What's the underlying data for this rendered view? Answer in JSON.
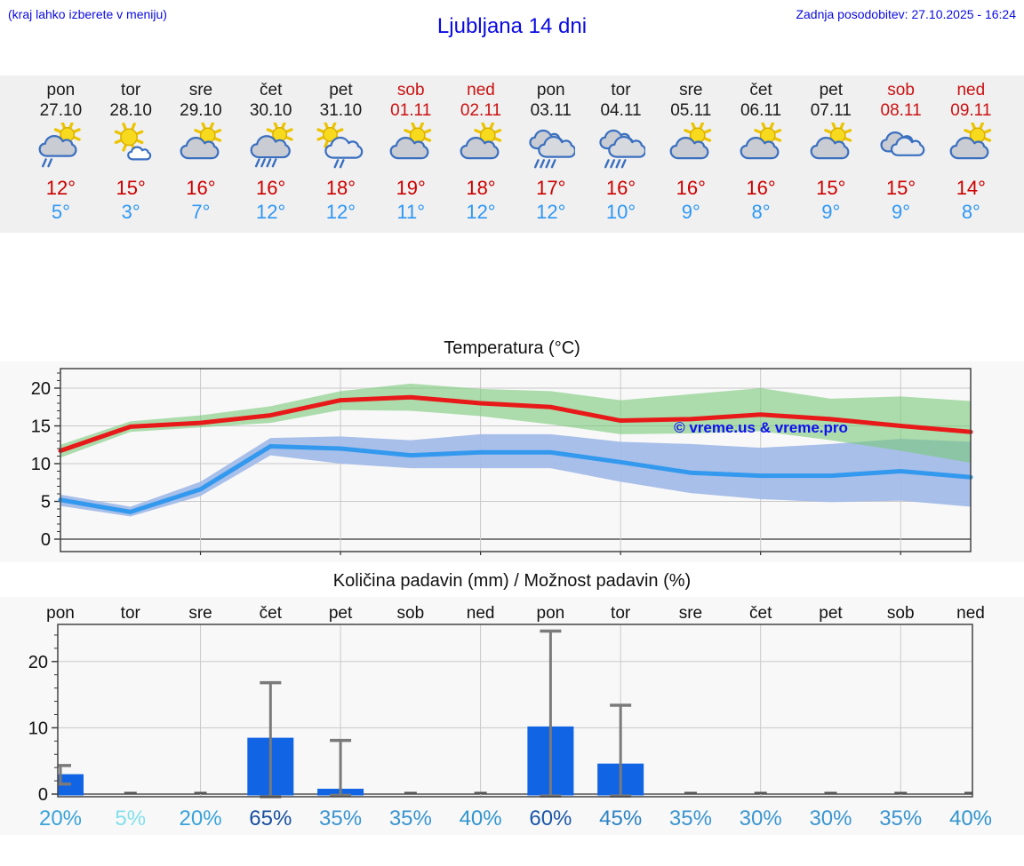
{
  "header": {
    "menu_hint": "(kraj lahko izberete v meniju)",
    "title": "Ljubljana 14 dni",
    "last_update": "Zadnja posodobitev: 27.10.2025 - 16:24"
  },
  "colors": {
    "link_blue": "#0a0ae0",
    "tmax_red": "#cc0000",
    "tmin_blue": "#2e97f5",
    "weekend_red": "#cc1111",
    "strip_bg": "#f0f0f0",
    "chart_bg": "#f8f8f8",
    "bar_blue": "#1164e4",
    "watermark_blue": "#1010ee"
  },
  "forecast": {
    "days": [
      {
        "day": "pon",
        "date": "27.10",
        "weekend": false,
        "icon": "sun-cloud-lightrain",
        "tmax": "12°",
        "tmin": "5°",
        "precip_prob": "20%",
        "prob_color": "#3aa2da"
      },
      {
        "day": "tor",
        "date": "28.10",
        "weekend": false,
        "icon": "sun-smallcloud",
        "tmax": "15°",
        "tmin": "3°",
        "precip_prob": "5%",
        "prob_color": "#82e0ea"
      },
      {
        "day": "sre",
        "date": "29.10",
        "weekend": false,
        "icon": "sun-cloud",
        "tmax": "16°",
        "tmin": "7°",
        "precip_prob": "20%",
        "prob_color": "#3aa2da"
      },
      {
        "day": "čet",
        "date": "30.10",
        "weekend": false,
        "icon": "sun-cloud-rain",
        "tmax": "16°",
        "tmin": "12°",
        "precip_prob": "65%",
        "prob_color": "#174f9e"
      },
      {
        "day": "pet",
        "date": "31.10",
        "weekend": false,
        "icon": "sun-left-cloud-lightrain",
        "tmax": "18°",
        "tmin": "12°",
        "precip_prob": "35%",
        "prob_color": "#3a94d0"
      },
      {
        "day": "sob",
        "date": "01.11",
        "weekend": true,
        "icon": "sun-cloud",
        "tmax": "19°",
        "tmin": "11°",
        "precip_prob": "35%",
        "prob_color": "#3a94d0"
      },
      {
        "day": "ned",
        "date": "02.11",
        "weekend": true,
        "icon": "sun-cloud",
        "tmax": "18°",
        "tmin": "12°",
        "precip_prob": "40%",
        "prob_color": "#3295ce"
      },
      {
        "day": "pon",
        "date": "03.11",
        "weekend": false,
        "icon": "clouds-rain",
        "tmax": "17°",
        "tmin": "12°",
        "precip_prob": "60%",
        "prob_color": "#1b57a8"
      },
      {
        "day": "tor",
        "date": "04.11",
        "weekend": false,
        "icon": "clouds-rain",
        "tmax": "16°",
        "tmin": "10°",
        "precip_prob": "45%",
        "prob_color": "#2d83c4"
      },
      {
        "day": "sre",
        "date": "05.11",
        "weekend": false,
        "icon": "sun-cloud",
        "tmax": "16°",
        "tmin": "9°",
        "precip_prob": "35%",
        "prob_color": "#3a94d0"
      },
      {
        "day": "čet",
        "date": "06.11",
        "weekend": false,
        "icon": "sun-cloud",
        "tmax": "16°",
        "tmin": "8°",
        "precip_prob": "30%",
        "prob_color": "#3b96d1"
      },
      {
        "day": "pet",
        "date": "07.11",
        "weekend": false,
        "icon": "sun-cloud",
        "tmax": "15°",
        "tmin": "9°",
        "precip_prob": "30%",
        "prob_color": "#3b96d1"
      },
      {
        "day": "sob",
        "date": "08.11",
        "weekend": true,
        "icon": "clouds",
        "tmax": "15°",
        "tmin": "9°",
        "precip_prob": "35%",
        "prob_color": "#3a94d0"
      },
      {
        "day": "ned",
        "date": "09.11",
        "weekend": true,
        "icon": "sun-cloud",
        "tmax": "14°",
        "tmin": "8°",
        "precip_prob": "40%",
        "prob_color": "#3295ce"
      }
    ]
  },
  "chart_data": [
    {
      "type": "line",
      "title": "Temperatura (°C)",
      "watermark": "© vreme.us & vreme.pro",
      "x_days": [
        "pon 27.10",
        "tor 28.10",
        "sre 29.10",
        "čet 30.10",
        "pet 31.10",
        "sob 01.11",
        "ned 02.11",
        "pon 03.11",
        "tor 04.11",
        "sre 05.11",
        "čet 06.11",
        "pet 07.11",
        "sob 08.11",
        "ned 09.11"
      ],
      "yticks": [
        0,
        5,
        10,
        15,
        20
      ],
      "ylim": [
        -1.6,
        22.6
      ],
      "grid": true,
      "series": [
        {
          "name": "t_max",
          "color": "#e81919",
          "values": [
            11.7,
            14.9,
            15.4,
            16.4,
            18.4,
            18.8,
            18.0,
            17.5,
            15.7,
            15.9,
            16.5,
            15.9,
            15.0,
            14.2
          ]
        },
        {
          "name": "t_max_range",
          "kind": "band",
          "color": "#79c979",
          "upper": [
            12.5,
            15.6,
            16.4,
            17.6,
            19.6,
            20.6,
            19.9,
            19.6,
            18.4,
            19.2,
            20.0,
            18.6,
            18.9,
            18.3
          ],
          "lower": [
            10.8,
            14.2,
            14.8,
            15.4,
            17.1,
            17.0,
            16.3,
            15.2,
            13.9,
            14.0,
            14.3,
            13.1,
            11.7,
            10.1
          ]
        },
        {
          "name": "t_min",
          "color": "#3399ee",
          "values": [
            5.2,
            3.6,
            6.6,
            12.3,
            12.0,
            11.1,
            11.5,
            11.5,
            10.2,
            8.8,
            8.4,
            8.4,
            9.0,
            8.2
          ]
        },
        {
          "name": "t_min_range",
          "kind": "band",
          "color": "#a3bce8",
          "upper": [
            5.9,
            4.3,
            7.6,
            13.4,
            13.6,
            13.1,
            13.9,
            13.9,
            12.9,
            12.6,
            12.1,
            12.6,
            13.3,
            12.9
          ],
          "lower": [
            4.4,
            3.0,
            5.7,
            11.1,
            10.0,
            9.4,
            9.4,
            9.4,
            7.6,
            6.1,
            5.3,
            4.9,
            5.1,
            4.3
          ]
        }
      ]
    },
    {
      "type": "bar",
      "title": "Količina padavin (mm) / Možnost padavin (%)",
      "categories": [
        "pon",
        "tor",
        "sre",
        "čet",
        "pet",
        "sob",
        "ned",
        "pon",
        "tor",
        "sre",
        "čet",
        "pet",
        "sob",
        "ned"
      ],
      "values": [
        3.0,
        0,
        0,
        8.5,
        0.8,
        0,
        0,
        10.2,
        4.6,
        0,
        0,
        0,
        0,
        0
      ],
      "whisker_low": [
        1.5,
        null,
        null,
        -0.4,
        -0.2,
        null,
        null,
        -0.3,
        -0.3,
        null,
        null,
        null,
        null,
        null
      ],
      "whisker_high": [
        4.3,
        null,
        null,
        16.8,
        8.1,
        null,
        null,
        24.6,
        13.4,
        null,
        null,
        null,
        null,
        null
      ],
      "probabilities": [
        "20%",
        "5%",
        "20%",
        "65%",
        "35%",
        "35%",
        "40%",
        "60%",
        "45%",
        "35%",
        "30%",
        "30%",
        "35%",
        "40%"
      ],
      "yticks": [
        0,
        10,
        20
      ],
      "ylim": [
        0,
        25.6
      ],
      "bar_color": "#1164e4"
    }
  ]
}
